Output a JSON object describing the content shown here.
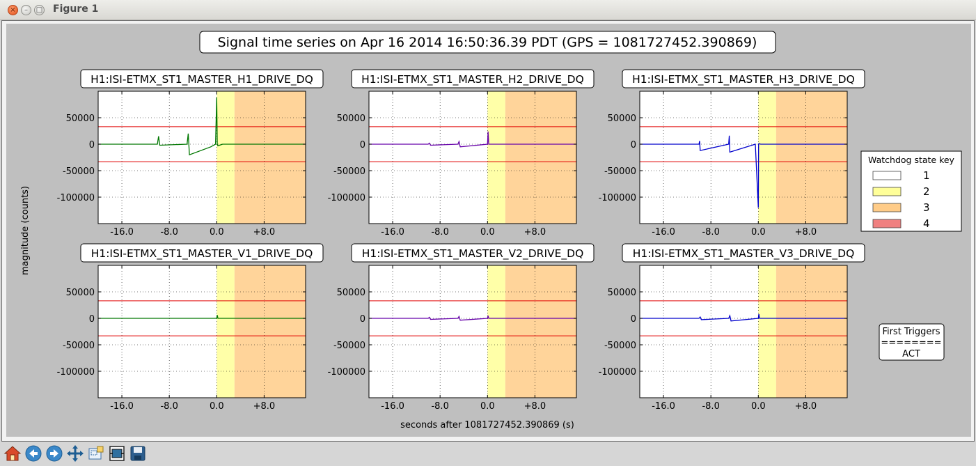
{
  "window": {
    "title": "Figure 1"
  },
  "figure": {
    "suptitle": "Signal time series on Apr 16 2014 16:50:36.39 PDT (GPS = 1081727452.390869)",
    "ylabel": "magnitude (counts)",
    "xlabel": "seconds after 1081727452.390869 (s)",
    "legend": {
      "title": "Watchdog state key",
      "entries": [
        {
          "label": "1",
          "color": "#ffffff"
        },
        {
          "label": "2",
          "color": "#ffff99"
        },
        {
          "label": "3",
          "color": "#ffcc88"
        },
        {
          "label": "4",
          "color": "#f08080"
        }
      ]
    },
    "first_triggers": {
      "title": "First Triggers",
      "separator": "========",
      "value": "ACT"
    }
  },
  "chart_data": [
    {
      "type": "line",
      "title": "H1:ISI-ETMX_ST1_MASTER_H1_DRIVE_DQ",
      "color": "#007700",
      "xlim": [
        -20,
        15
      ],
      "ylim": [
        -150000,
        100000
      ],
      "xticks": [
        "-16.0",
        "-8.0",
        "0.0",
        "+8.0"
      ],
      "yticks": [
        "50000",
        "0",
        "-50000",
        "-100000"
      ],
      "thresholds": [
        33000,
        -33000
      ],
      "spans": [
        {
          "state": "2",
          "from": 0,
          "to": 3
        },
        {
          "state": "3",
          "from": 3,
          "to": 15
        }
      ],
      "x": [
        -20,
        -10,
        -9.8,
        -9.6,
        -5,
        -4.8,
        -4.6,
        -1,
        -0.2,
        0,
        0.1,
        0.2,
        1,
        15
      ],
      "y": [
        0,
        0,
        15000,
        -2000,
        0,
        20000,
        -20000,
        -5000,
        0,
        88000,
        0,
        -3000,
        0,
        0
      ]
    },
    {
      "type": "line",
      "title": "H1:ISI-ETMX_ST1_MASTER_H2_DRIVE_DQ",
      "color": "#6600aa",
      "xlim": [
        -20,
        15
      ],
      "ylim": [
        -150000,
        100000
      ],
      "xticks": [
        "-16.0",
        "-8.0",
        "0.0",
        "+8.0"
      ],
      "yticks": [
        "50000",
        "0",
        "-50000",
        "-100000"
      ],
      "thresholds": [
        33000,
        -33000
      ],
      "spans": [
        {
          "state": "2",
          "from": 0,
          "to": 3
        },
        {
          "state": "3",
          "from": 3,
          "to": 15
        }
      ],
      "x": [
        -20,
        -10,
        -9.8,
        -9.6,
        -5,
        -4.8,
        -4.6,
        0,
        0.1,
        0.2,
        15
      ],
      "y": [
        0,
        0,
        2000,
        -2000,
        0,
        5000,
        -5000,
        0,
        24000,
        0,
        0
      ]
    },
    {
      "type": "line",
      "title": "H1:ISI-ETMX_ST1_MASTER_H3_DRIVE_DQ",
      "color": "#0000cc",
      "xlim": [
        -20,
        15
      ],
      "ylim": [
        -150000,
        100000
      ],
      "xticks": [
        "-16.0",
        "-8.0",
        "0.0",
        "+8.0"
      ],
      "yticks": [
        "50000",
        "0",
        "-50000",
        "-100000"
      ],
      "thresholds": [
        33000,
        -33000
      ],
      "spans": [
        {
          "state": "2",
          "from": 0,
          "to": 3
        },
        {
          "state": "3",
          "from": 3,
          "to": 15
        }
      ],
      "x": [
        -20,
        -10,
        -9.9,
        -9.8,
        -5,
        -4.9,
        -4.8,
        -0.5,
        0,
        0.05,
        0.1,
        0.4,
        15
      ],
      "y": [
        0,
        0,
        6000,
        -12000,
        0,
        16000,
        -15000,
        0,
        -120000,
        0,
        1000,
        0,
        0
      ]
    },
    {
      "type": "line",
      "title": "H1:ISI-ETMX_ST1_MASTER_V1_DRIVE_DQ",
      "color": "#007700",
      "xlim": [
        -20,
        15
      ],
      "ylim": [
        -150000,
        100000
      ],
      "xticks": [
        "-16.0",
        "-8.0",
        "0.0",
        "+8.0"
      ],
      "yticks": [
        "50000",
        "0",
        "-50000",
        "-100000"
      ],
      "thresholds": [
        33000,
        -33000
      ],
      "spans": [
        {
          "state": "2",
          "from": 0,
          "to": 3
        },
        {
          "state": "3",
          "from": 3,
          "to": 15
        }
      ],
      "x": [
        -20,
        -1,
        0,
        0.1,
        0.2,
        15
      ],
      "y": [
        0,
        0,
        0,
        6000,
        0,
        0
      ]
    },
    {
      "type": "line",
      "title": "H1:ISI-ETMX_ST1_MASTER_V2_DRIVE_DQ",
      "color": "#6600aa",
      "xlim": [
        -20,
        15
      ],
      "ylim": [
        -150000,
        100000
      ],
      "xticks": [
        "-16.0",
        "-8.0",
        "0.0",
        "+8.0"
      ],
      "yticks": [
        "50000",
        "0",
        "-50000",
        "-100000"
      ],
      "thresholds": [
        33000,
        -33000
      ],
      "spans": [
        {
          "state": "2",
          "from": 0,
          "to": 3
        },
        {
          "state": "3",
          "from": 3,
          "to": 15
        }
      ],
      "x": [
        -20,
        -10,
        -9.8,
        -9.6,
        -5,
        -4.8,
        -4.6,
        0,
        0.1,
        0.2,
        15
      ],
      "y": [
        0,
        0,
        2000,
        -2000,
        0,
        3500,
        -3500,
        0,
        5000,
        0,
        0
      ]
    },
    {
      "type": "line",
      "title": "H1:ISI-ETMX_ST1_MASTER_V3_DRIVE_DQ",
      "color": "#0000cc",
      "xlim": [
        -20,
        15
      ],
      "ylim": [
        -150000,
        100000
      ],
      "xticks": [
        "-16.0",
        "-8.0",
        "0.0",
        "+8.0"
      ],
      "yticks": [
        "50000",
        "0",
        "-50000",
        "-100000"
      ],
      "thresholds": [
        33000,
        -33000
      ],
      "spans": [
        {
          "state": "2",
          "from": 0,
          "to": 3
        },
        {
          "state": "3",
          "from": 3,
          "to": 15
        }
      ],
      "x": [
        -20,
        -10,
        -9.8,
        -9.6,
        -5,
        -4.8,
        -4.6,
        0,
        0.1,
        0.2,
        15
      ],
      "y": [
        0,
        0,
        2500,
        -2500,
        0,
        5000,
        -5000,
        0,
        8000,
        0,
        0
      ]
    }
  ],
  "toolbar": {
    "buttons": [
      {
        "name": "home-button",
        "icon": "home-icon"
      },
      {
        "name": "back-button",
        "icon": "back-arrow-icon"
      },
      {
        "name": "forward-button",
        "icon": "forward-arrow-icon"
      },
      {
        "name": "pan-button",
        "icon": "pan-icon"
      },
      {
        "name": "zoom-button",
        "icon": "zoom-rect-icon"
      },
      {
        "name": "subplots-button",
        "icon": "subplots-icon"
      },
      {
        "name": "save-button",
        "icon": "save-icon"
      }
    ]
  }
}
